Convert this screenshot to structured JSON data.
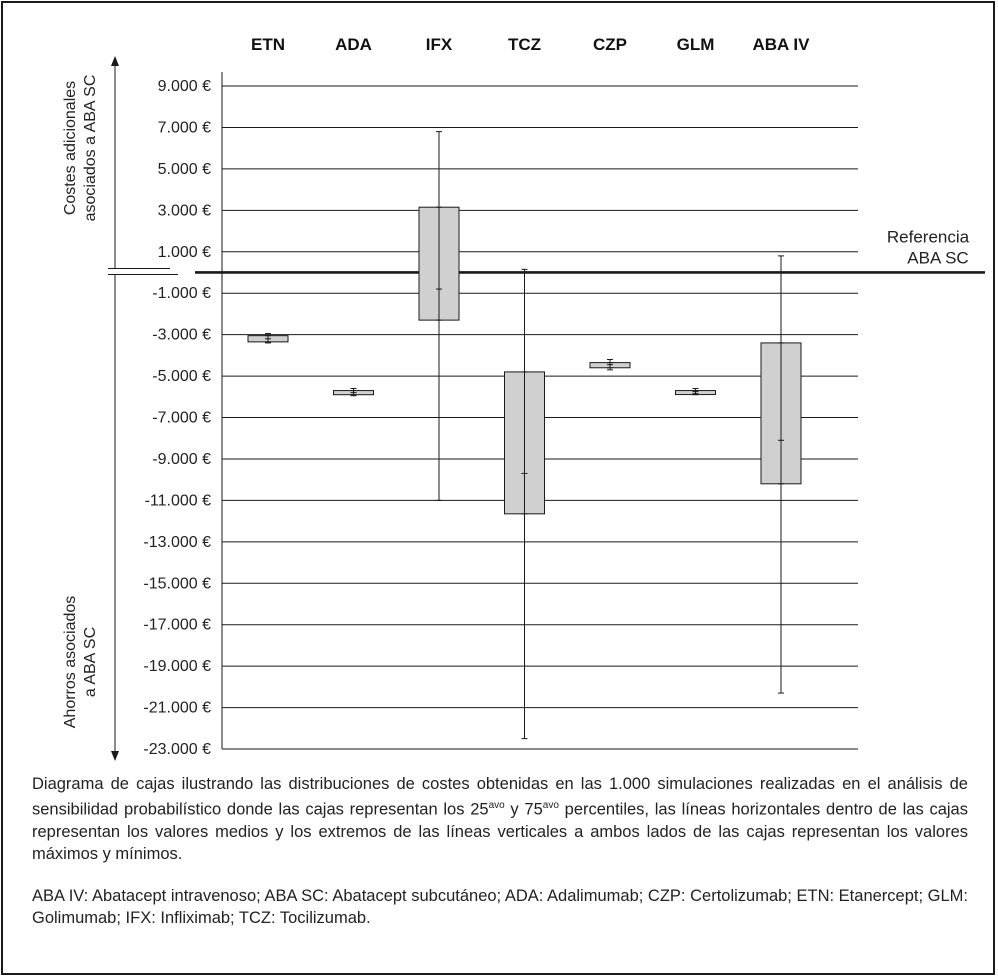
{
  "chart_data": {
    "type": "box",
    "categories": [
      "ETN",
      "ADA",
      "IFX",
      "TCZ",
      "CZP",
      "GLM",
      "ABA IV"
    ],
    "boxes": [
      {
        "name": "ETN",
        "min": -3400,
        "q1": -3350,
        "mean": -3200,
        "q3": -3050,
        "max": -2950
      },
      {
        "name": "ADA",
        "min": -5950,
        "q1": -5900,
        "mean": -5800,
        "q3": -5700,
        "max": -5600
      },
      {
        "name": "IFX",
        "min": -11000,
        "q1": -2300,
        "mean": -800,
        "q3": 3150,
        "max": 6800
      },
      {
        "name": "TCZ",
        "min": -22500,
        "q1": -11650,
        "mean": -9700,
        "q3": -4800,
        "max": 150
      },
      {
        "name": "CZP",
        "min": -4700,
        "q1": -4600,
        "mean": -4450,
        "q3": -4350,
        "max": -4200
      },
      {
        "name": "GLM",
        "min": -5900,
        "q1": -5850,
        "mean": -5750,
        "q3": -5700,
        "max": -5600
      },
      {
        "name": "ABA IV",
        "min": -20300,
        "q1": -10200,
        "mean": -8100,
        "q3": -3400,
        "max": 800
      }
    ],
    "reference_line": {
      "value": 0,
      "label_line1": "Referencia",
      "label_line2": "ABA SC"
    },
    "y_ticks": [
      9000,
      7000,
      5000,
      3000,
      1000,
      -1000,
      -3000,
      -5000,
      -7000,
      -9000,
      -11000,
      -13000,
      -15000,
      -17000,
      -19000,
      -21000,
      -23000
    ],
    "y_tick_labels": [
      "9.000 €",
      "7.000 €",
      "5.000 €",
      "3.000 €",
      "1.000 €",
      "-1.000 €",
      "-3.000 €",
      "-5.000 €",
      "-7.000 €",
      "-9.000 €",
      "-11.000 €",
      "-13.000 €",
      "-15.000 €",
      "-17.000 €",
      "-19.000 €",
      "-21.000 €",
      "-23.000 €"
    ],
    "ylim": [
      -23000,
      10000
    ],
    "grid": true,
    "upper_axis_label": [
      "Costes adicionales",
      "asociados a ABA SC"
    ],
    "lower_axis_label": [
      "Ahorros asociados",
      "a ABA SC"
    ],
    "colors": {
      "box_fill": "#d0d0d0",
      "line": "#1a1a1a",
      "grid": "#1a1a1a"
    }
  },
  "caption": {
    "p1_a": "Diagrama de cajas ilustrando las distribuciones de costes obtenidas en las 1.000 simulaciones realizadas en el análisis de sensibilidad probabilístico donde las cajas representan los 25",
    "p1_sup1": "avo",
    "p1_b": " y 75",
    "p1_sup2": "avo",
    "p1_c": " percentiles, las líneas horizontales dentro de las cajas representan los valores medios y los extremos de las líneas verticales a ambos lados de las cajas representan los valores máximos y mínimos.",
    "p2": "ABA IV: Abatacept intravenoso; ABA SC: Abatacept subcutáneo; ADA: Adalimumab; CZP: Certolizumab; ETN: Etanercept; GLM: Golimumab; IFX: Infliximab; TCZ: Tocilizumab."
  }
}
